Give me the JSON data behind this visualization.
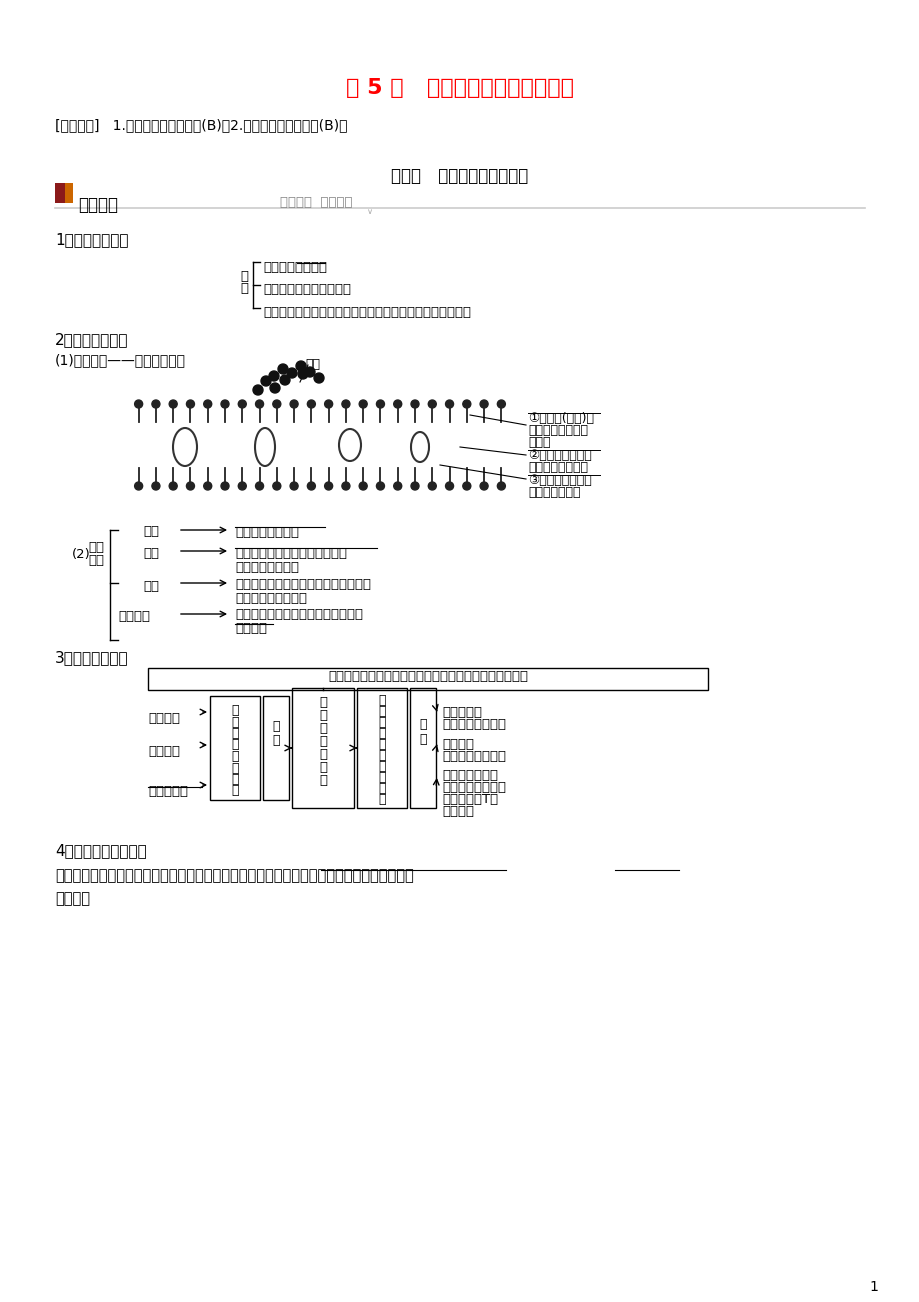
{
  "bg_color": "#ffffff",
  "title": "第 5 讲   细胞膜、细胞壁和细胞核",
  "title_color": "#ff0000",
  "exam_req": "[考纲要求]   1.细胞膜的结构和功能(B)。2.细胞核的结构与功能(B)。",
  "section1": "考点一   细胞膜的结构与功能",
  "knowledge_label": "知识梳理",
  "knowledge_sub": "夯实基础  强化要点",
  "item1_title": "1．细胞膜的成分",
  "comp1": "脂质：主要是磷脂",
  "comp2": "蛋白质：与膜的功能有关",
  "comp3": "糖类（少量）：与蛋白质（脂质）结合形成糖蛋白（糖脂）",
  "item2_title": "2．细胞膜的结构",
  "item2_sub": "(1)结构模型——流动镶嵌模型",
  "ann1a": "①糖蛋白(糖被)：",
  "ann1b": "细胞识别、保护、",
  "ann1c": "润滑等",
  "ann2a": "②磷脂双分子层：",
  "ann2b": "构成膜的基本支架",
  "ann3a": "③蛋白质分子：行",
  "ann3b": "使膜的主要功能",
  "sugar_label": "糖类",
  "nei_rong": "内容",
  "ju_you": "具有一定的流动性",
  "yuan_yin": "原因",
  "gou_cheng": "构成膜的磷脂分子和蛋白质分子",
  "da_dou": "大都是可以运动的",
  "jie_gou": "结构",
  "te_dian": "特点",
  "er": "(2)",
  "shi_li": "实例",
  "shi_li_text": "质壁分离、变形虫运动、胞吞和胞吐、",
  "bai_xi": "白细胞的吞噬作用等",
  "ying_xiang": "影响因素",
  "wen_du": "温度：一定范围内，温度升高，膜流",
  "dong_xing": "动性加快",
  "item3_title": "3．细胞膜的功能",
  "func_box": "将细胞与周围环境分隔开，保障细胞内部环境的相对稳定",
  "bei_dong": "被动运输",
  "zhu_dong": "主动运输",
  "bao_tun": "胞吞、胞吐",
  "kong_zhi": "控\n制\n物\n质\n进\n出\n细\n胞",
  "fang_shi": "方\n式",
  "xi_bao_mo": "细胞膜\n（功能）",
  "jin_xing": "进\n行\n细\n胞\n间\n的\n信\n息\n交\n流",
  "lei_xing": "类\n型",
  "yuan_ju": "远距离传递",
  "yuan_ju2": "（如激素、递质）",
  "tong_dao": "通道传递",
  "tong_dao2": "（如细胞间连丝）",
  "xiang_lin": "相邻细胞间传递",
  "xiang_lin2": "（如精卵结合、靶",
  "xiang_lin3": "细胞与效应T细",
  "xiang_lin4": "胞接触）",
  "item4_title": "4．细胞壁成分与功能",
  "item4_text1": "植物细胞的细胞膜外还有细胞壁，其主要成分是多糖（纤维素、果胶等），具有维持形态和保",
  "item4_text2": "护作用。",
  "page_num": "1"
}
